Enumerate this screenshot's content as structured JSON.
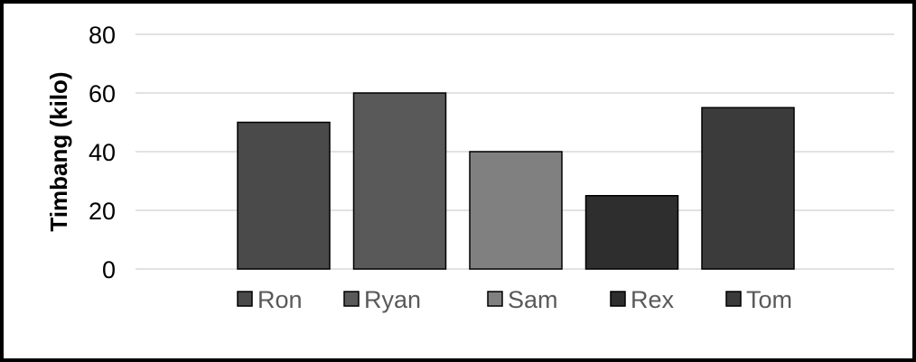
{
  "chart_data": {
    "type": "bar",
    "categories": [
      "Ron",
      "Ryan",
      "Sam",
      "Rex",
      "Tom"
    ],
    "values": [
      50,
      60,
      40,
      25,
      55
    ],
    "colors": [
      "#4a4a4a",
      "#595959",
      "#808080",
      "#2e2e2e",
      "#3b3b3b"
    ],
    "title": "",
    "xlabel": "",
    "ylabel": "Timbang (kilo)",
    "ylim": [
      0,
      80
    ],
    "yticks": [
      0,
      20,
      40,
      60,
      80
    ],
    "grid": true,
    "legend": "bottom"
  }
}
